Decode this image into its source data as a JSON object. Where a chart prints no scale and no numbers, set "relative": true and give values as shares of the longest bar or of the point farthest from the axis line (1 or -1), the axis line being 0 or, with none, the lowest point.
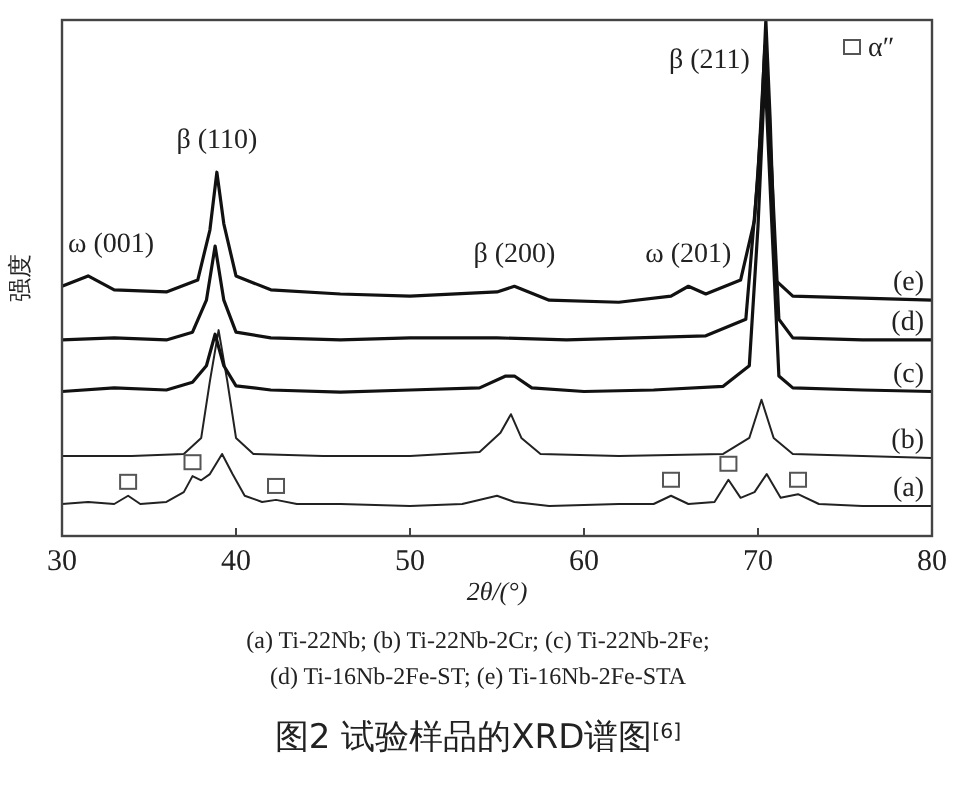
{
  "chart_data": {
    "type": "line",
    "title": "图2 试验样品的XRD谱图$^{[6]}$",
    "xlabel": "2θ/(°)",
    "ylabel": "强度",
    "relative": true,
    "xlim": [
      30,
      80
    ],
    "xticks": [
      30,
      40,
      50,
      60,
      70,
      80
    ],
    "legend": "top right",
    "line_style": "solid",
    "series": [
      {
        "name": "(a)",
        "color": "#222222",
        "marker": "none",
        "x": [
          30,
          31.5,
          33,
          33.8,
          34.5,
          36,
          37,
          37.5,
          38,
          38.5,
          39.2,
          39.8,
          40.5,
          41.5,
          42.3,
          43.5,
          46,
          50,
          53,
          55,
          56,
          58,
          62,
          64,
          65,
          66,
          67.5,
          68.3,
          69,
          69.8,
          70.5,
          71.3,
          72.3,
          73.5,
          76,
          80
        ],
        "values": [
          0.062,
          0.066,
          0.062,
          0.078,
          0.062,
          0.066,
          0.085,
          0.116,
          0.108,
          0.12,
          0.159,
          0.12,
          0.078,
          0.066,
          0.07,
          0.062,
          0.062,
          0.058,
          0.062,
          0.078,
          0.066,
          0.058,
          0.062,
          0.062,
          0.078,
          0.062,
          0.066,
          0.109,
          0.074,
          0.085,
          0.12,
          0.074,
          0.081,
          0.062,
          0.058,
          0.058
        ]
      },
      {
        "name": "(b)",
        "color": "#222222",
        "marker": "none",
        "x": [
          30,
          34,
          37,
          38,
          38.5,
          39,
          39.5,
          40,
          41,
          45,
          50,
          54,
          55.2,
          55.8,
          56.4,
          57.5,
          62,
          68,
          69.5,
          70.2,
          70.9,
          72,
          76,
          80
        ],
        "values": [
          0.155,
          0.155,
          0.159,
          0.19,
          0.3,
          0.399,
          0.3,
          0.19,
          0.159,
          0.155,
          0.155,
          0.163,
          0.2,
          0.236,
          0.19,
          0.159,
          0.155,
          0.159,
          0.19,
          0.264,
          0.19,
          0.159,
          0.155,
          0.151
        ]
      },
      {
        "name": "(c)",
        "color": "#111111",
        "marker": "none",
        "x": [
          30,
          33,
          36,
          37.5,
          38.3,
          38.8,
          39.3,
          40,
          42,
          46,
          50,
          54,
          55.5,
          56,
          57,
          60,
          64,
          68,
          69.5,
          70,
          70.4,
          70.8,
          71.2,
          72,
          76,
          80
        ],
        "values": [
          0.28,
          0.287,
          0.283,
          0.298,
          0.33,
          0.391,
          0.33,
          0.291,
          0.283,
          0.279,
          0.283,
          0.287,
          0.31,
          0.31,
          0.287,
          0.28,
          0.283,
          0.29,
          0.33,
          0.6,
          0.9,
          0.6,
          0.31,
          0.287,
          0.283,
          0.28
        ]
      },
      {
        "name": "(d)",
        "color": "#111111",
        "marker": "none",
        "x": [
          30,
          33,
          36,
          37.5,
          38.3,
          38.8,
          39.3,
          40,
          42,
          46,
          50,
          55,
          59,
          63,
          67,
          69.3,
          70,
          70.4,
          70.8,
          71.2,
          72,
          76,
          80
        ],
        "values": [
          0.38,
          0.384,
          0.38,
          0.395,
          0.457,
          0.562,
          0.457,
          0.395,
          0.384,
          0.38,
          0.384,
          0.384,
          0.38,
          0.384,
          0.388,
          0.42,
          0.7,
          0.95,
          0.7,
          0.42,
          0.384,
          0.38,
          0.38
        ]
      },
      {
        "name": "(e)",
        "color": "#111111",
        "marker": "none",
        "x": [
          30,
          31.5,
          33,
          36,
          37.8,
          38.5,
          38.9,
          39.3,
          40,
          42,
          46,
          50,
          55,
          56,
          58,
          62,
          65,
          66,
          67,
          69,
          69.8,
          70.2,
          70.45,
          70.7,
          71,
          72,
          76,
          80
        ],
        "values": [
          0.484,
          0.504,
          0.477,
          0.473,
          0.496,
          0.593,
          0.705,
          0.605,
          0.504,
          0.477,
          0.469,
          0.465,
          0.473,
          0.484,
          0.457,
          0.453,
          0.465,
          0.484,
          0.469,
          0.496,
          0.612,
          0.806,
          1,
          0.806,
          0.496,
          0.465,
          0.461,
          0.457
        ]
      },
      {
        "name": "α″",
        "type": "scatter",
        "color": "#555555",
        "marker": "square",
        "x": [
          33.8,
          37.5,
          42.3,
          65,
          68.3,
          72.3
        ],
        "values": [
          0.105,
          0.143,
          0.097,
          0.109,
          0.14,
          0.109
        ]
      }
    ],
    "annotations": [
      {
        "text": "ω (001)",
        "x": 31.5,
        "y": 0.504
      },
      {
        "text": "β (110)",
        "x": 38.9,
        "y": 0.705
      },
      {
        "text": "β (200)",
        "x": 56,
        "y": 0.484
      },
      {
        "text": "ω (201)",
        "x": 66,
        "y": 0.484
      },
      {
        "text": "β (211)",
        "x": 70.45,
        "y": 1
      },
      "(a) Ti-22Nb; (b) Ti-22Nb-2Cr; (c) Ti-22Nb-2Fe;",
      "(d) Ti-16Nb-2Fe-ST; (e) Ti-16Nb-2Fe-STA"
    ]
  }
}
